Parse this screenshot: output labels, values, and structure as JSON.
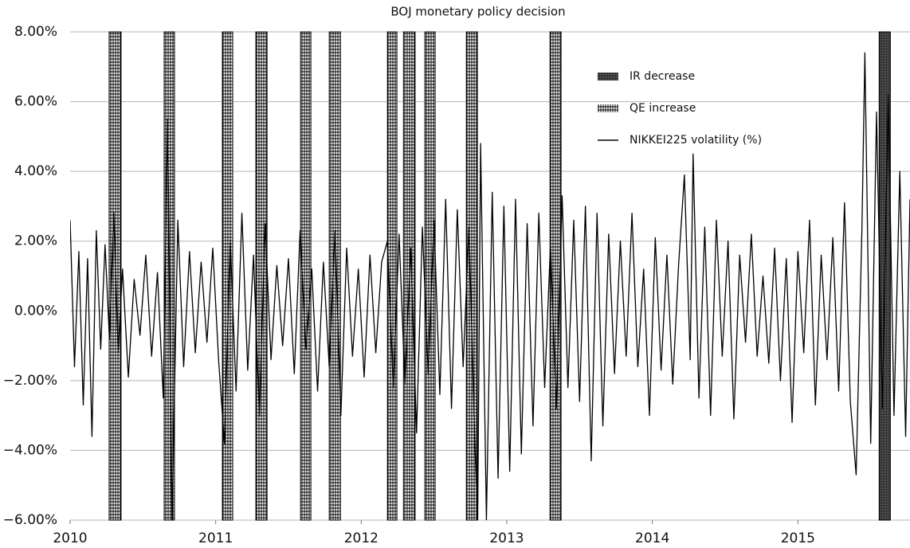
{
  "chart_data": {
    "type": "line",
    "title": "BOJ monetary policy decision",
    "xlim": [
      2010,
      2015.77
    ],
    "xticks": [
      2010,
      2011,
      2012,
      2013,
      2014,
      2015
    ],
    "ylim": [
      -6,
      8
    ],
    "yticks": [
      {
        "value": -6,
        "label": "−6.00%"
      },
      {
        "value": -4,
        "label": "−4.00%"
      },
      {
        "value": -2,
        "label": "−2.00%"
      },
      {
        "value": 0,
        "label": "0.00%"
      },
      {
        "value": 2,
        "label": "2.00%"
      },
      {
        "value": 4,
        "label": "4.00%"
      },
      {
        "value": 6,
        "label": "6.00%"
      },
      {
        "value": 8,
        "label": "8.00%"
      }
    ],
    "grid": true,
    "series": [
      {
        "name": "IR decrease",
        "type": "band",
        "pattern": "dots",
        "color": "#000000",
        "periods": [
          [
            2015.558,
            2015.635
          ]
        ]
      },
      {
        "name": "QE increase",
        "type": "band",
        "pattern": "cross",
        "color": "#000000",
        "periods": [
          [
            2010.268,
            2010.35
          ],
          [
            2010.646,
            2010.717
          ],
          [
            2011.046,
            2011.117
          ],
          [
            2011.276,
            2011.353
          ],
          [
            2011.583,
            2011.654
          ],
          [
            2011.78,
            2011.857
          ],
          [
            2012.18,
            2012.245
          ],
          [
            2012.29,
            2012.37
          ],
          [
            2012.437,
            2012.508
          ],
          [
            2012.722,
            2012.798
          ],
          [
            2013.297,
            2013.373
          ]
        ]
      },
      {
        "name": "NIKKEI225 volatility (%)",
        "type": "line",
        "color": "#000000",
        "x": [
          2010.0,
          2010.03,
          2010.06,
          2010.09,
          2010.12,
          2010.15,
          2010.18,
          2010.21,
          2010.24,
          2010.27,
          2010.3,
          2010.33,
          2010.36,
          2010.4,
          2010.44,
          2010.48,
          2010.52,
          2010.56,
          2010.6,
          2010.64,
          2010.67,
          2010.7,
          2010.74,
          2010.78,
          2010.82,
          2010.86,
          2010.9,
          2010.94,
          2010.98,
          2011.02,
          2011.06,
          2011.1,
          2011.14,
          2011.18,
          2011.22,
          2011.26,
          2011.3,
          2011.34,
          2011.38,
          2011.42,
          2011.46,
          2011.5,
          2011.54,
          2011.58,
          2011.62,
          2011.66,
          2011.7,
          2011.74,
          2011.78,
          2011.82,
          2011.86,
          2011.9,
          2011.94,
          2011.98,
          2012.02,
          2012.06,
          2012.1,
          2012.14,
          2012.18,
          2012.22,
          2012.26,
          2012.3,
          2012.34,
          2012.38,
          2012.42,
          2012.46,
          2012.5,
          2012.54,
          2012.58,
          2012.62,
          2012.66,
          2012.7,
          2012.74,
          2012.78,
          2012.8,
          2012.82,
          2012.86,
          2012.9,
          2012.94,
          2012.98,
          2013.02,
          2013.06,
          2013.1,
          2013.14,
          2013.18,
          2013.22,
          2013.26,
          2013.3,
          2013.34,
          2013.38,
          2013.42,
          2013.46,
          2013.5,
          2013.54,
          2013.58,
          2013.62,
          2013.66,
          2013.7,
          2013.74,
          2013.78,
          2013.82,
          2013.86,
          2013.9,
          2013.94,
          2013.98,
          2014.02,
          2014.06,
          2014.1,
          2014.14,
          2014.18,
          2014.22,
          2014.26,
          2014.28,
          2014.32,
          2014.36,
          2014.4,
          2014.44,
          2014.48,
          2014.52,
          2014.56,
          2014.6,
          2014.64,
          2014.68,
          2014.72,
          2014.76,
          2014.8,
          2014.84,
          2014.88,
          2014.92,
          2014.96,
          2015.0,
          2015.04,
          2015.08,
          2015.12,
          2015.16,
          2015.2,
          2015.24,
          2015.28,
          2015.32,
          2015.36,
          2015.4,
          2015.44,
          2015.46,
          2015.5,
          2015.54,
          2015.58,
          2015.62,
          2015.66,
          2015.7,
          2015.74,
          2015.77
        ],
        "values": [
          2.6,
          -1.6,
          1.7,
          -2.7,
          1.5,
          -3.6,
          2.3,
          -1.1,
          1.9,
          -0.8,
          2.8,
          -1.2,
          1.2,
          -1.9,
          0.9,
          -0.7,
          1.6,
          -1.3,
          1.1,
          -2.5,
          5.5,
          -6,
          2.6,
          -1.6,
          1.7,
          -1.2,
          1.4,
          -0.9,
          1.8,
          -1.4,
          -3.8,
          2.0,
          -2.3,
          2.8,
          -1.7,
          1.6,
          -3.0,
          2.5,
          -1.4,
          1.3,
          -1.0,
          1.5,
          -1.8,
          2.3,
          -1.1,
          1.2,
          -2.3,
          1.4,
          -1.6,
          2.3,
          -3.0,
          1.8,
          -1.3,
          1.2,
          -1.9,
          1.6,
          -1.2,
          1.4,
          2.0,
          -2.2,
          2.2,
          -2.1,
          1.8,
          -3.5,
          2.4,
          -1.8,
          2.6,
          -2.4,
          3.2,
          -2.8,
          2.9,
          -1.6,
          2.4,
          -3.7,
          -6,
          4.8,
          -6,
          3.4,
          -4.8,
          3.0,
          -4.6,
          3.2,
          -4.1,
          2.5,
          -3.3,
          2.8,
          -2.2,
          1.9,
          -2.8,
          3.3,
          -2.2,
          2.6,
          -2.6,
          3.0,
          -4.3,
          2.8,
          -3.3,
          2.2,
          -1.8,
          2.0,
          -1.3,
          2.8,
          -1.6,
          1.2,
          -3.0,
          2.1,
          -1.7,
          1.6,
          -2.1,
          1.3,
          3.9,
          -1.4,
          4.5,
          -2.5,
          2.4,
          -3.0,
          2.6,
          -1.3,
          2.0,
          -3.1,
          1.6,
          -0.9,
          2.2,
          -1.3,
          1.0,
          -1.5,
          1.8,
          -2.0,
          1.5,
          -3.2,
          1.7,
          -1.2,
          2.6,
          -2.7,
          1.6,
          -1.4,
          2.1,
          -2.3,
          3.1,
          -2.6,
          -4.7,
          2.4,
          7.4,
          -3.8,
          5.7,
          -2.8,
          6.2,
          -3.0,
          4.0,
          -3.6,
          3.2
        ]
      }
    ]
  }
}
